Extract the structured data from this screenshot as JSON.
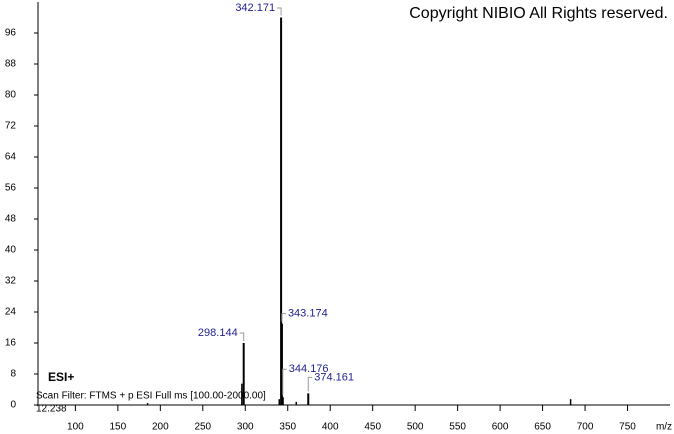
{
  "chart_data": {
    "type": "spectrum",
    "copyright": "Copyright NIBIO All Rights reserved.",
    "ion_mode": "ESI+",
    "scan_filter": "Scan Filter: FTMS + p ESI Full ms [100.00-2000.00]",
    "retention_time": "12.238",
    "x_label": "m/z",
    "x": [
      298.144,
      342.171,
      343.174,
      344.176,
      374.161
    ],
    "values": [
      16,
      100,
      21,
      2,
      3
    ],
    "minor_peaks": {
      "x": [
        296,
        340,
        360,
        185,
        683
      ],
      "values": [
        5.5,
        1.5,
        0.8,
        0.5,
        1.5
      ]
    },
    "color": "#000000",
    "label_color": "#1f1f8f",
    "xlim": [
      56,
      800
    ],
    "xticks": [
      100,
      150,
      200,
      250,
      300,
      350,
      400,
      450,
      500,
      550,
      600,
      650,
      700,
      750
    ],
    "ylim": [
      0,
      104
    ],
    "yticks": [
      0,
      8,
      16,
      24,
      32,
      40,
      48,
      56,
      64,
      72,
      80,
      88,
      96
    ]
  }
}
